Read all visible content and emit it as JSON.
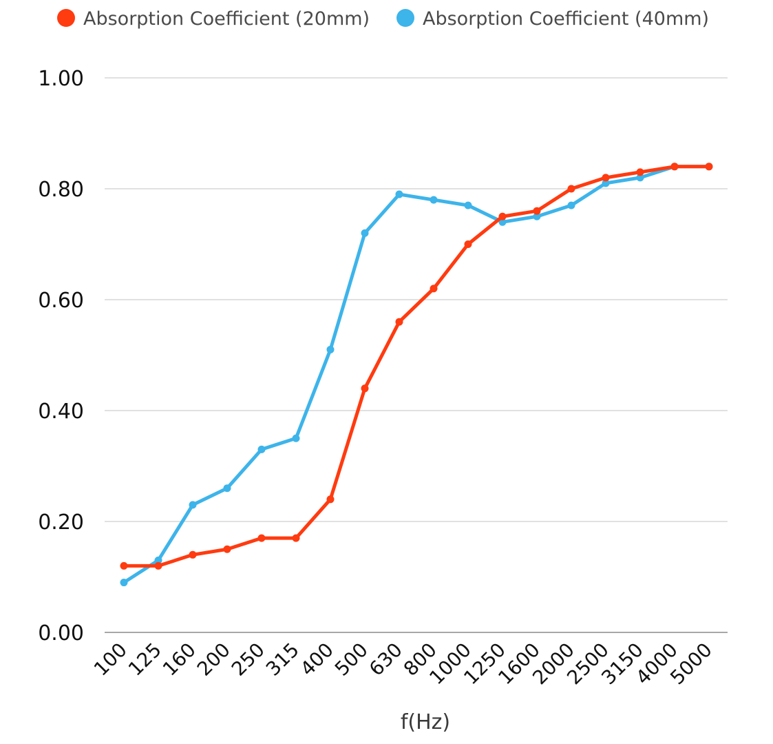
{
  "chart_data": {
    "type": "line",
    "title": "",
    "xlabel": "f(Hz)",
    "ylabel": "",
    "categories": [
      "100",
      "125",
      "160",
      "200",
      "250",
      "315",
      "400",
      "500",
      "630",
      "800",
      "1000",
      "1250",
      "1600",
      "2000",
      "2500",
      "3150",
      "4000",
      "5000"
    ],
    "ylim": [
      0,
      1
    ],
    "yticks": [
      "0.00",
      "0.20",
      "0.40",
      "0.60",
      "0.80",
      "1.00"
    ],
    "ytick_values": [
      0,
      0.2,
      0.4,
      0.6,
      0.8,
      1.0
    ],
    "grid": true,
    "legend_position": "top",
    "series": [
      {
        "name": "Absorption Coefficient (20mm)",
        "color": "#ff3b10",
        "values": [
          0.12,
          0.12,
          0.14,
          0.15,
          0.17,
          0.17,
          0.24,
          0.44,
          0.56,
          0.62,
          0.7,
          0.75,
          0.76,
          0.8,
          0.82,
          0.83,
          0.84,
          0.84
        ]
      },
      {
        "name": "Absorption Coefficient (40mm)",
        "color": "#3db4ea",
        "values": [
          0.09,
          0.13,
          0.23,
          0.26,
          0.33,
          0.35,
          0.51,
          0.72,
          0.79,
          0.78,
          0.77,
          0.74,
          0.75,
          0.77,
          0.81,
          0.82,
          0.84,
          0.84
        ]
      }
    ]
  }
}
